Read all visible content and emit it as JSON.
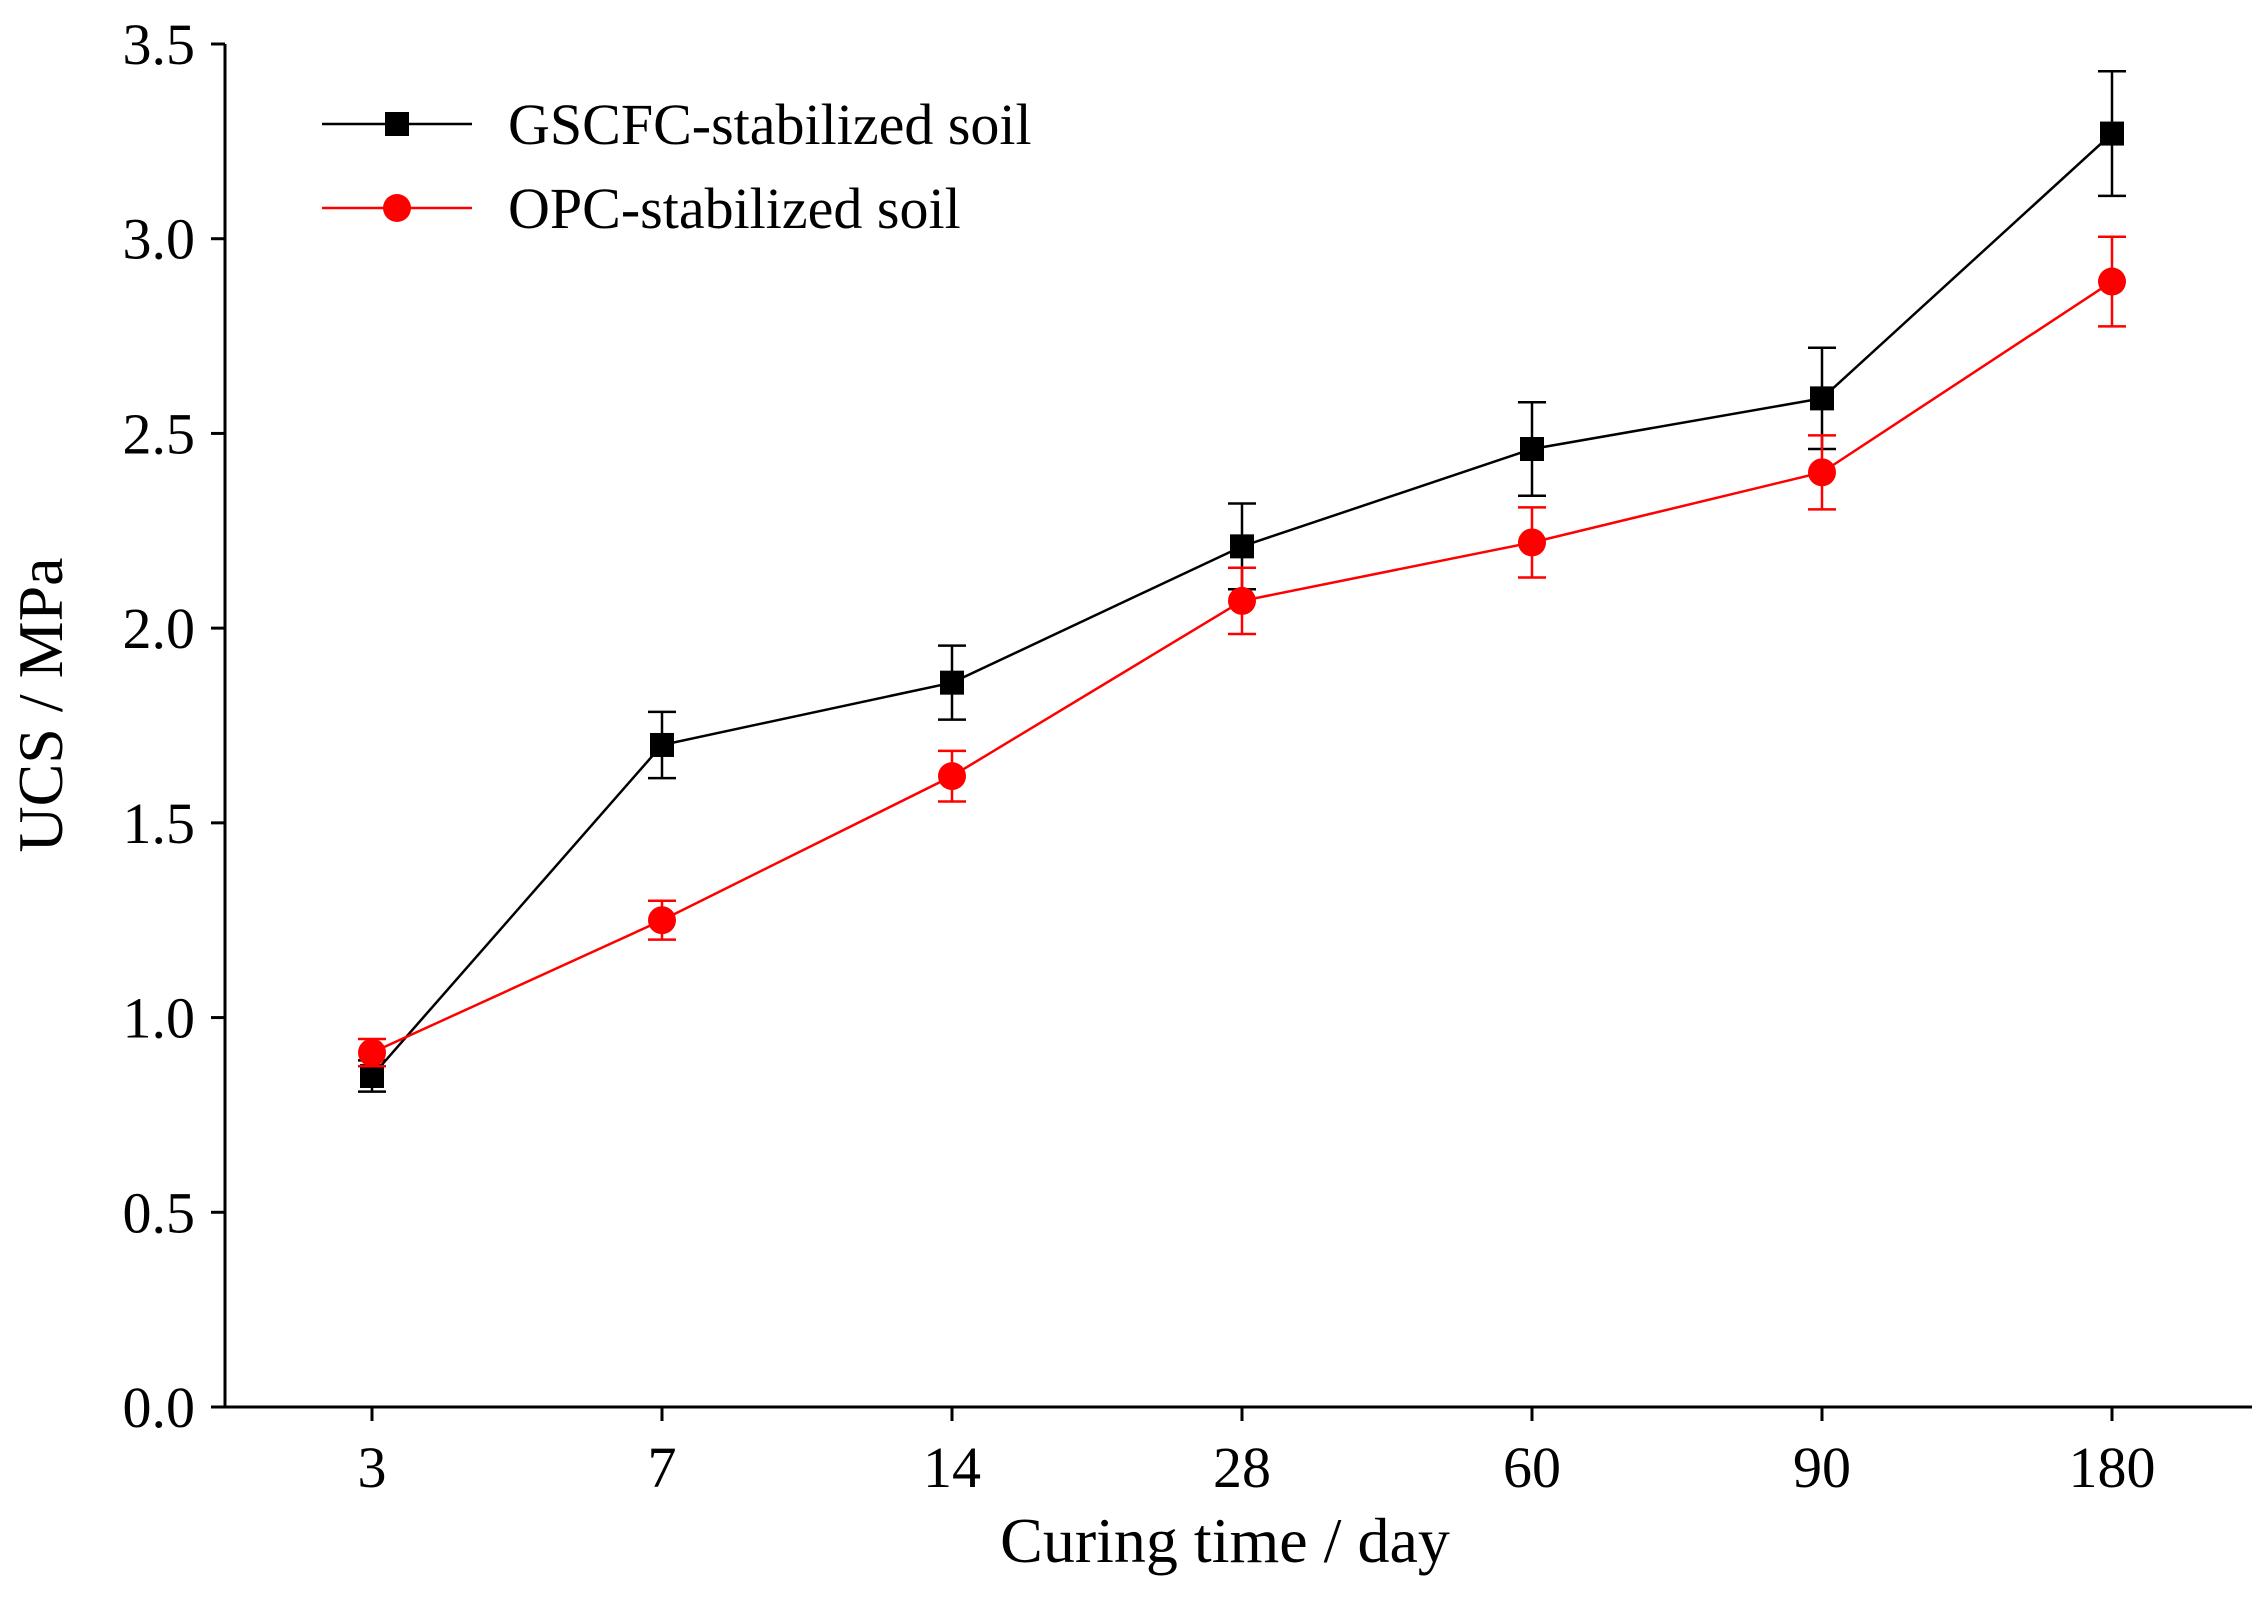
{
  "chart_data": {
    "type": "line",
    "title": "",
    "xlabel": "Curing time / day",
    "ylabel": "UCS / MPa",
    "categories": [
      "3",
      "7",
      "14",
      "28",
      "60",
      "90",
      "180"
    ],
    "ylim": [
      0.0,
      3.5
    ],
    "yticks": [
      "0.0",
      "0.5",
      "1.0",
      "1.5",
      "2.0",
      "2.5",
      "3.0",
      "3.5"
    ],
    "grid": false,
    "legend_position": "top-left",
    "series": [
      {
        "name": "GSCFC-stabilized soil",
        "color": "#000000",
        "marker": "square",
        "values": [
          0.85,
          1.7,
          1.86,
          2.21,
          2.46,
          2.59,
          3.27
        ],
        "errors": [
          0.04,
          0.085,
          0.095,
          0.11,
          0.12,
          0.13,
          0.16
        ]
      },
      {
        "name": "OPC-stabilized soil",
        "color": "#ff0000",
        "marker": "circle",
        "values": [
          0.91,
          1.25,
          1.62,
          2.07,
          2.22,
          2.4,
          2.89
        ],
        "errors": [
          0.035,
          0.05,
          0.065,
          0.085,
          0.09,
          0.095,
          0.115
        ]
      }
    ]
  }
}
